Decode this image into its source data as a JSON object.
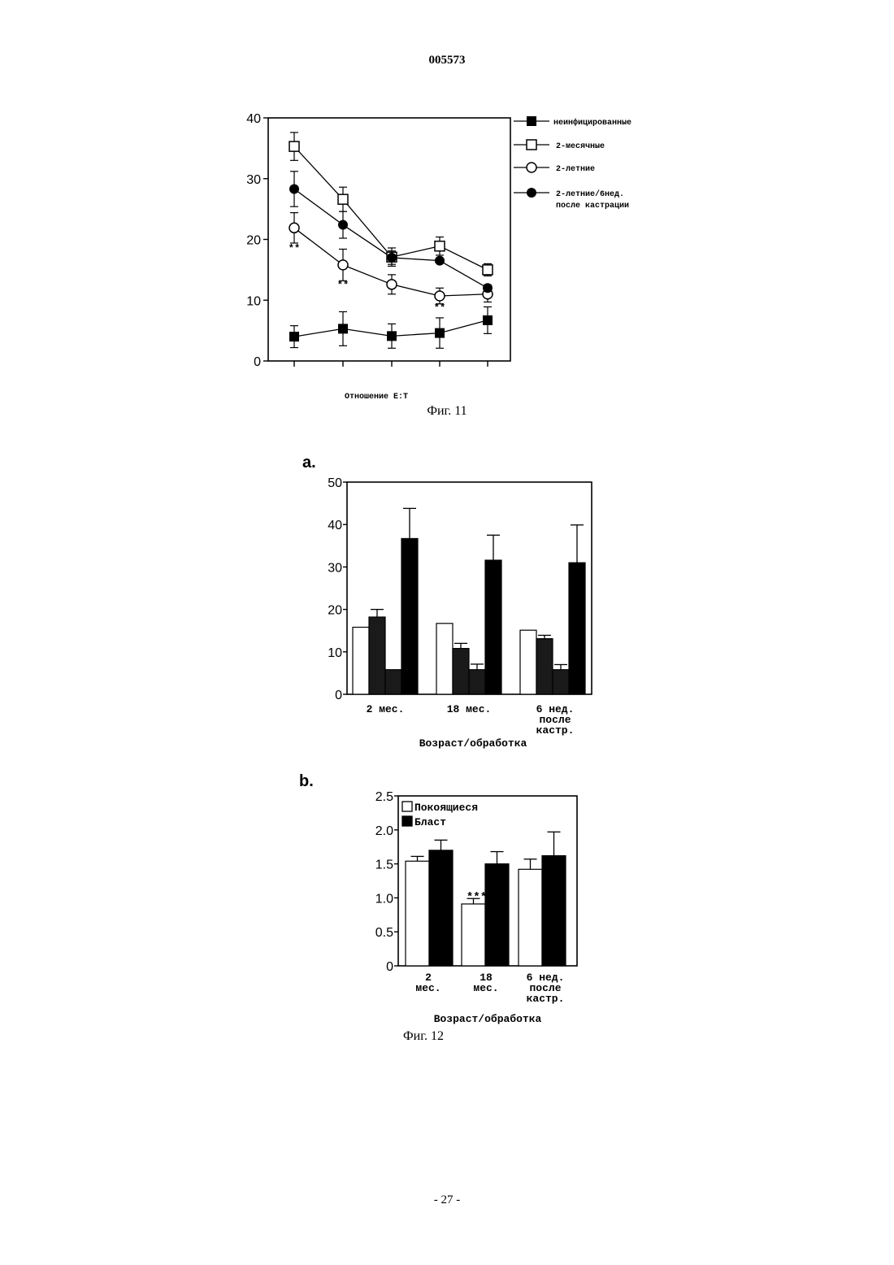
{
  "header": {
    "doc_number": "005573"
  },
  "footer": {
    "page_number": "- 27 -"
  },
  "fig11": {
    "caption": "Фиг. 11",
    "chart_data": {
      "type": "line",
      "xlabel": "Отношение E:T",
      "ylim": [
        0,
        40
      ],
      "yticks": [
        "0",
        "10",
        "20",
        "30",
        "40"
      ],
      "x_positions": 5,
      "series": [
        {
          "name": "неинфицированные",
          "marker": "square-filled",
          "values": [
            4,
            5.3,
            4.1,
            4.6,
            6.7
          ],
          "errors": [
            1.8,
            2.8,
            2.0,
            2.5,
            2.2
          ]
        },
        {
          "name": "2-месячные",
          "marker": "square-open",
          "values": [
            35.3,
            26.6,
            17.1,
            18.9,
            15.0
          ],
          "errors": [
            2.3,
            2.0,
            1.5,
            1.5,
            1.0
          ]
        },
        {
          "name": "2-летние",
          "marker": "circle-open",
          "values": [
            21.9,
            15.8,
            12.6,
            10.7,
            11.0
          ],
          "errors": [
            2.5,
            2.6,
            1.6,
            1.3,
            1.3
          ]
        },
        {
          "name": "2-летние/6нед. после кастрации",
          "marker": "diamond-filled",
          "values": [
            28.3,
            22.4,
            17.0,
            16.5,
            12.0
          ],
          "errors": [
            2.9,
            2.2,
            1.1,
            0.3,
            0.5
          ]
        }
      ],
      "legend_lines": [
        [
          "неинфицированные"
        ],
        [
          "2-месячные"
        ],
        [
          "2-летние"
        ],
        [
          "2-летние/6нед.",
          "после кастрации"
        ]
      ],
      "annotations": [
        {
          "text": "**",
          "x_index": 0,
          "y": 18.6
        },
        {
          "text": "**",
          "x_index": 1,
          "y": 12.6
        },
        {
          "text": "**",
          "x_index": 3,
          "y": 8.8
        }
      ],
      "legend_position": "right"
    }
  },
  "fig12a": {
    "label": "a.",
    "chart_data": {
      "type": "bar",
      "categories": [
        "2 мес.",
        "18 мес.",
        "6 нед.\nпосле\nкастр."
      ],
      "xlabel": "Возраст/обработка",
      "ylim": [
        0,
        50
      ],
      "yticks": [
        "0",
        "10",
        "20",
        "30",
        "40",
        "50"
      ],
      "series": [
        {
          "fill": "#ffffff",
          "values": [
            15.8,
            16.7,
            15.1
          ],
          "errors": [
            0,
            0,
            0
          ]
        },
        {
          "fill": "#1a1a1a",
          "values": [
            18.2,
            10.8,
            13.1
          ],
          "errors": [
            1.8,
            1.2,
            0.8
          ]
        },
        {
          "fill": "#1a1a1a",
          "values": [
            5.8,
            5.8,
            5.8
          ],
          "errors": [
            0,
            1.3,
            1.2
          ]
        },
        {
          "fill": "#000000",
          "values": [
            36.7,
            31.6,
            31.0
          ],
          "errors": [
            7.1,
            5.9,
            8.9
          ]
        }
      ]
    }
  },
  "fig12b": {
    "label": "b.",
    "caption": "Фиг. 12",
    "chart_data": {
      "type": "bar",
      "categories": [
        "2\nмес.",
        "18\nмес.",
        "6 нед.\nпосле\nкастр."
      ],
      "xlabel": "Возраст/обработка",
      "ylim": [
        0,
        2.5
      ],
      "yticks": [
        "0",
        "0.5",
        "1.0",
        "1.5",
        "2.0",
        "2.5"
      ],
      "series": [
        {
          "name": "Покоящиеся",
          "fill": "#ffffff",
          "values": [
            1.54,
            0.91,
            1.42
          ],
          "errors": [
            0.07,
            0.08,
            0.15
          ]
        },
        {
          "name": "Бласт",
          "fill": "#000000",
          "values": [
            1.7,
            1.5,
            1.62
          ],
          "errors": [
            0.15,
            0.18,
            0.35
          ]
        }
      ],
      "annotations": [
        {
          "text": "***",
          "category_index": 1,
          "y": 1.04
        }
      ],
      "legend_position": "top-left"
    }
  }
}
